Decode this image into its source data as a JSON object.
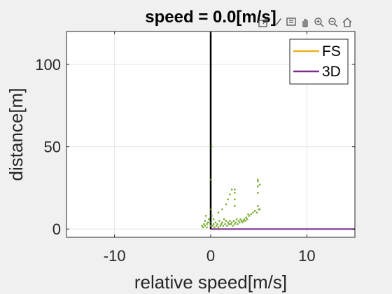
{
  "chart_data": {
    "type": "scatter",
    "title": "speed = 0.0[m/s]",
    "xlabel": "relative speed[m/s]",
    "ylabel": "distance[m]",
    "xlim": [
      -15,
      15
    ],
    "ylim": [
      -5,
      120
    ],
    "xticks": [
      -10,
      0,
      10
    ],
    "yticks": [
      0,
      50,
      100
    ],
    "xtick_labels": [
      "-10",
      "0",
      "10"
    ],
    "ytick_labels": [
      "0",
      "50",
      "100"
    ],
    "grid": true,
    "legend_position": "top-right",
    "series": [
      {
        "name": "FS",
        "kind": "line",
        "color": "#EDB120",
        "points": []
      },
      {
        "name": "3D",
        "kind": "line",
        "color": "#7E2F8E",
        "points": [
          [
            0,
            0
          ],
          [
            15,
            0
          ]
        ]
      },
      {
        "name": "",
        "kind": "line",
        "color": "#000000",
        "points": [
          [
            0,
            0
          ],
          [
            0,
            120
          ]
        ]
      },
      {
        "name": "",
        "kind": "scatter",
        "color": "#77AC30",
        "points": [
          [
            -0.9,
            2
          ],
          [
            -0.7,
            3
          ],
          [
            -0.6,
            5
          ],
          [
            -0.5,
            8
          ],
          [
            -0.4,
            1
          ],
          [
            -0.3,
            4
          ],
          [
            -0.2,
            6
          ],
          [
            -0.8,
            1
          ],
          [
            -0.6,
            2
          ],
          [
            -0.4,
            3
          ],
          [
            0.2,
            2
          ],
          [
            0.3,
            3
          ],
          [
            0.4,
            1
          ],
          [
            0.5,
            4
          ],
          [
            0.6,
            2
          ],
          [
            0.7,
            3
          ],
          [
            0.8,
            1
          ],
          [
            0.9,
            5
          ],
          [
            1.0,
            2
          ],
          [
            1.1,
            3
          ],
          [
            1.2,
            4
          ],
          [
            1.3,
            2
          ],
          [
            1.4,
            6
          ],
          [
            1.5,
            3
          ],
          [
            1.6,
            5
          ],
          [
            1.7,
            2
          ],
          [
            1.8,
            4
          ],
          [
            1.9,
            3
          ],
          [
            2.0,
            5
          ],
          [
            2.1,
            3
          ],
          [
            2.2,
            4
          ],
          [
            2.3,
            2
          ],
          [
            2.4,
            5
          ],
          [
            2.5,
            3
          ],
          [
            2.6,
            4
          ],
          [
            2.7,
            6
          ],
          [
            2.8,
            3
          ],
          [
            2.9,
            5
          ],
          [
            3.0,
            4
          ],
          [
            3.1,
            6
          ],
          [
            3.2,
            5
          ],
          [
            3.3,
            4
          ],
          [
            3.4,
            5
          ],
          [
            3.5,
            6
          ],
          [
            3.6,
            5
          ],
          [
            3.7,
            7
          ],
          [
            3.8,
            6
          ],
          [
            3.9,
            9
          ],
          [
            4.0,
            8
          ],
          [
            4.2,
            9
          ],
          [
            4.4,
            10
          ],
          [
            4.6,
            11
          ],
          [
            4.8,
            10
          ],
          [
            5.0,
            12
          ],
          [
            0.8,
            10
          ],
          [
            1.2,
            12
          ],
          [
            1.6,
            15
          ],
          [
            1.8,
            18
          ],
          [
            2.0,
            21
          ],
          [
            2.2,
            24
          ],
          [
            2.5,
            24
          ],
          [
            2.5,
            22
          ],
          [
            2.5,
            18
          ],
          [
            2.5,
            14
          ],
          [
            4.9,
            14
          ],
          [
            4.9,
            22
          ],
          [
            4.9,
            26
          ],
          [
            4.9,
            29
          ],
          [
            4.9,
            30
          ],
          [
            5.1,
            27
          ],
          [
            5.1,
            12
          ],
          [
            0.1,
            50
          ],
          [
            0.05,
            30
          ],
          [
            0.05,
            12
          ],
          [
            0.1,
            8
          ],
          [
            -0.1,
            4
          ],
          [
            0.0,
            2
          ],
          [
            0.3,
            6
          ]
        ]
      }
    ]
  },
  "toolbar": {
    "icons": [
      "export-icon",
      "brush-icon",
      "data-tips-icon",
      "pan-icon",
      "zoom-in-icon",
      "zoom-out-icon",
      "home-icon"
    ]
  }
}
